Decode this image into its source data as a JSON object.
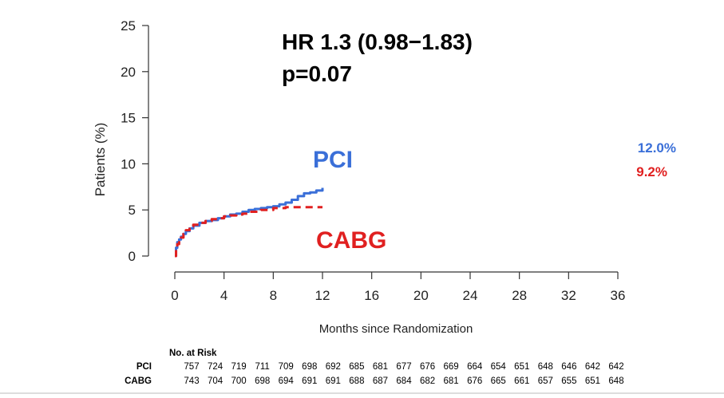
{
  "chart_data": {
    "type": "line",
    "ylabel": "Patients (%)",
    "xlabel": "Months since Randomization",
    "xlim": [
      0,
      36
    ],
    "ylim": [
      0,
      25
    ],
    "x_ticks": [
      0,
      4,
      8,
      12,
      16,
      20,
      24,
      28,
      32,
      36
    ],
    "y_ticks": [
      0,
      5,
      10,
      15,
      20,
      25
    ],
    "annotation": {
      "hr": "HR 1.3 (0.98−1.83)",
      "p": "p=0.07"
    },
    "series": [
      {
        "name": "PCI",
        "label": "PCI",
        "final_value_label": "12.0%",
        "color": "#3a6fd8",
        "style": "solid",
        "x": [
          0,
          0.1,
          0.2,
          0.35,
          0.5,
          0.7,
          0.9,
          1.2,
          1.5,
          2.0,
          2.5,
          3.0,
          3.5,
          4.0,
          4.5,
          5.0,
          5.5,
          6.0,
          6.5,
          7.0,
          7.5,
          8.0,
          8.5,
          9.0,
          9.5,
          10.0,
          10.5,
          11.0,
          11.5,
          12.0
        ],
        "y": [
          0,
          0.9,
          1.5,
          1.8,
          2.1,
          2.4,
          2.7,
          3.0,
          3.3,
          3.6,
          3.8,
          3.9,
          4.1,
          4.3,
          4.5,
          4.6,
          4.8,
          5.0,
          5.1,
          5.2,
          5.3,
          5.4,
          5.6,
          5.8,
          6.1,
          6.5,
          6.8,
          6.9,
          7.1,
          7.4
        ]
      },
      {
        "name": "CABG",
        "label": "CABG",
        "final_value_label": "9.2%",
        "color": "#e02020",
        "style": "dashed",
        "x": [
          0,
          0.1,
          0.2,
          0.35,
          0.5,
          0.7,
          0.9,
          1.2,
          1.5,
          2.0,
          2.5,
          3.0,
          3.5,
          4.0,
          4.5,
          5.0,
          5.5,
          6.0,
          7.0,
          8.0,
          9.0,
          10.0,
          11.0,
          12.0
        ],
        "y": [
          0,
          0.7,
          1.3,
          1.7,
          2.0,
          2.4,
          2.8,
          3.2,
          3.4,
          3.6,
          3.8,
          4.0,
          4.1,
          4.3,
          4.4,
          4.5,
          4.6,
          4.8,
          5.0,
          5.2,
          5.3,
          5.3,
          5.3,
          5.3
        ]
      }
    ]
  },
  "risk_table": {
    "title": "No. at Risk",
    "rows": [
      {
        "label": "PCI",
        "values": [
          "757",
          "724",
          "719",
          "711",
          "709",
          "698",
          "692",
          "685",
          "681",
          "677",
          "676",
          "669",
          "664",
          "654",
          "651",
          "648",
          "646",
          "642",
          "642"
        ]
      },
      {
        "label": "CABG",
        "values": [
          "743",
          "704",
          "700",
          "698",
          "694",
          "691",
          "691",
          "688",
          "687",
          "684",
          "682",
          "681",
          "676",
          "665",
          "661",
          "657",
          "655",
          "651",
          "648"
        ]
      }
    ]
  }
}
